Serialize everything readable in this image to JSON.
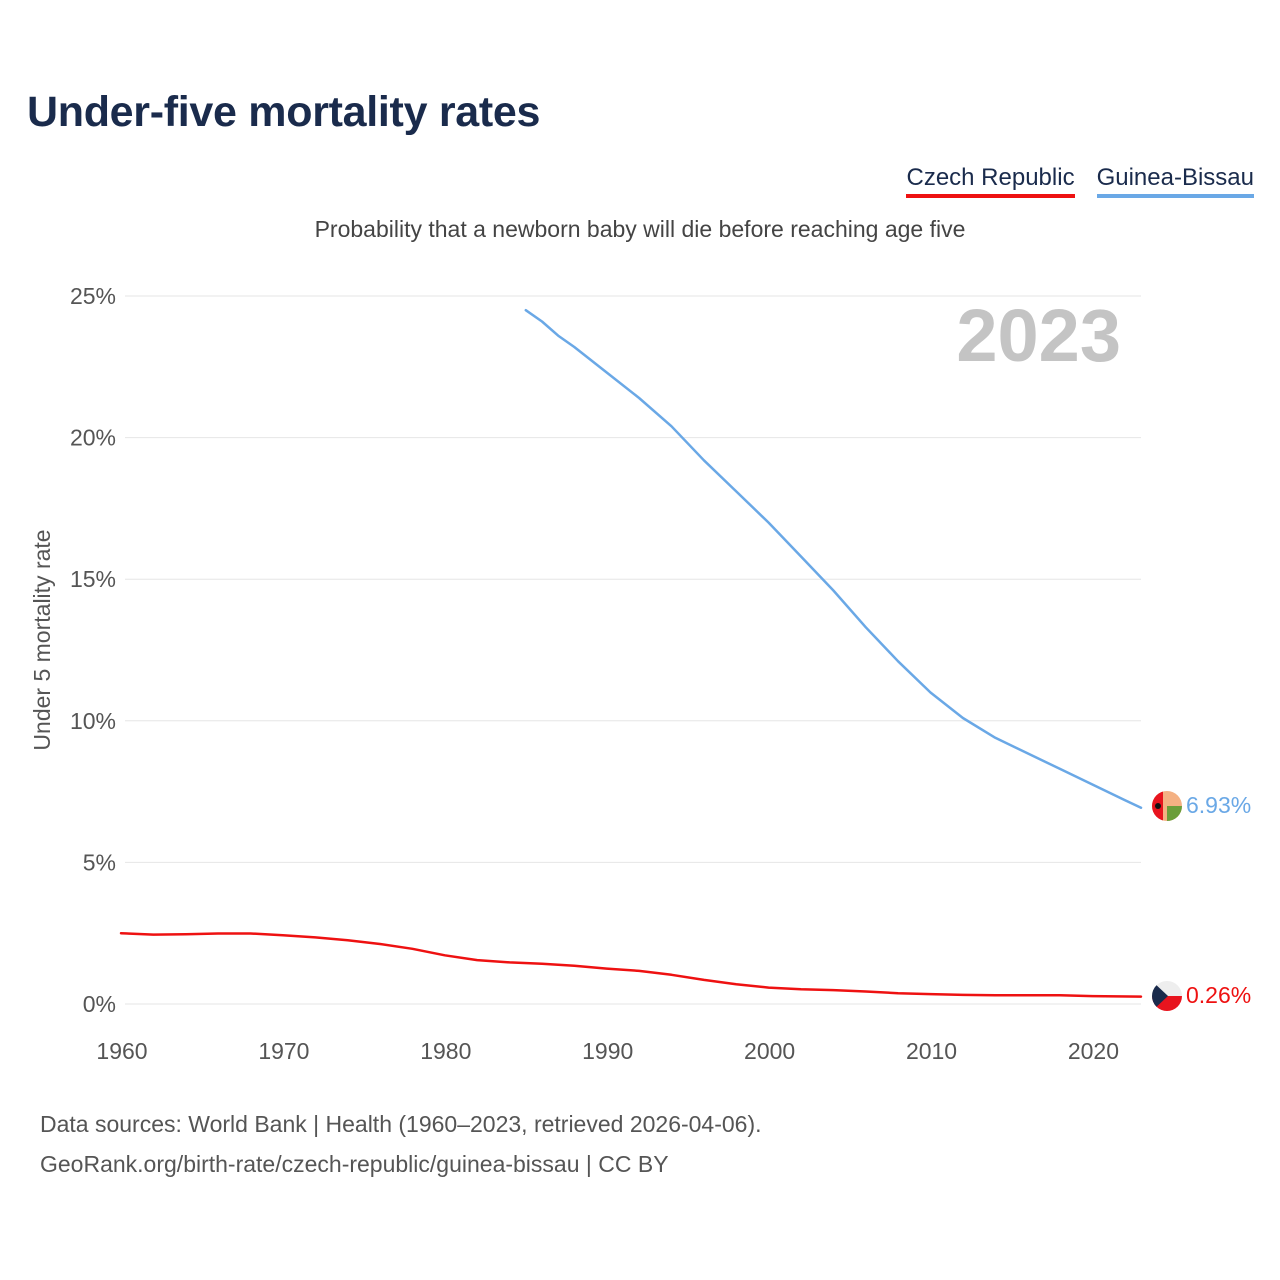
{
  "title": "Under-five mortality rates",
  "subtitle": "Probability that a newborn baby will die before reaching age five",
  "legend": [
    {
      "label": "Czech Republic",
      "color": "#ee1111"
    },
    {
      "label": "Guinea-Bissau",
      "color": "#6aa8e6"
    }
  ],
  "year_watermark": "2023",
  "footer": {
    "line1": "Data sources: World Bank | Health (1960–2023, retrieved 2026-04-06).",
    "line2": "GeoRank.org/birth-rate/czech-republic/guinea-bissau | CC BY"
  },
  "chart_data": {
    "type": "line",
    "title": "Under-five mortality rates",
    "xlabel": "",
    "ylabel": "Under 5 mortality rate",
    "xlim": [
      1960,
      2023
    ],
    "ylim": [
      0,
      25
    ],
    "xticks": [
      1960,
      1970,
      1980,
      1990,
      2000,
      2010,
      2020
    ],
    "yticks": [
      0,
      5,
      10,
      15,
      20,
      25
    ],
    "ytick_labels": [
      "0%",
      "5%",
      "10%",
      "15%",
      "20%",
      "25%"
    ],
    "grid": true,
    "legend_position": "top-right",
    "series": [
      {
        "name": "Czech Republic",
        "color": "#ee1111",
        "end_label": "0.26%",
        "points": [
          [
            1960,
            2.5
          ],
          [
            1962,
            2.45
          ],
          [
            1964,
            2.46
          ],
          [
            1966,
            2.49
          ],
          [
            1968,
            2.49
          ],
          [
            1970,
            2.43
          ],
          [
            1972,
            2.35
          ],
          [
            1974,
            2.25
          ],
          [
            1976,
            2.12
          ],
          [
            1978,
            1.95
          ],
          [
            1980,
            1.72
          ],
          [
            1982,
            1.55
          ],
          [
            1984,
            1.47
          ],
          [
            1986,
            1.42
          ],
          [
            1988,
            1.35
          ],
          [
            1990,
            1.25
          ],
          [
            1992,
            1.17
          ],
          [
            1994,
            1.03
          ],
          [
            1996,
            0.85
          ],
          [
            1998,
            0.7
          ],
          [
            2000,
            0.58
          ],
          [
            2002,
            0.52
          ],
          [
            2004,
            0.49
          ],
          [
            2006,
            0.44
          ],
          [
            2008,
            0.38
          ],
          [
            2010,
            0.35
          ],
          [
            2012,
            0.32
          ],
          [
            2014,
            0.31
          ],
          [
            2016,
            0.31
          ],
          [
            2018,
            0.31
          ],
          [
            2020,
            0.28
          ],
          [
            2023,
            0.26
          ]
        ]
      },
      {
        "name": "Guinea-Bissau",
        "color": "#6aa8e6",
        "end_label": "6.93%",
        "points": [
          [
            1985,
            24.5
          ],
          [
            1986,
            24.1
          ],
          [
            1987,
            23.6
          ],
          [
            1988,
            23.2
          ],
          [
            1990,
            22.3
          ],
          [
            1992,
            21.4
          ],
          [
            1994,
            20.4
          ],
          [
            1996,
            19.2
          ],
          [
            1998,
            18.1
          ],
          [
            2000,
            17.0
          ],
          [
            2002,
            15.8
          ],
          [
            2004,
            14.6
          ],
          [
            2006,
            13.3
          ],
          [
            2008,
            12.1
          ],
          [
            2010,
            11.0
          ],
          [
            2012,
            10.1
          ],
          [
            2014,
            9.4
          ],
          [
            2016,
            8.85
          ],
          [
            2018,
            8.3
          ],
          [
            2020,
            7.75
          ],
          [
            2022,
            7.2
          ],
          [
            2023,
            6.93
          ]
        ]
      }
    ]
  }
}
